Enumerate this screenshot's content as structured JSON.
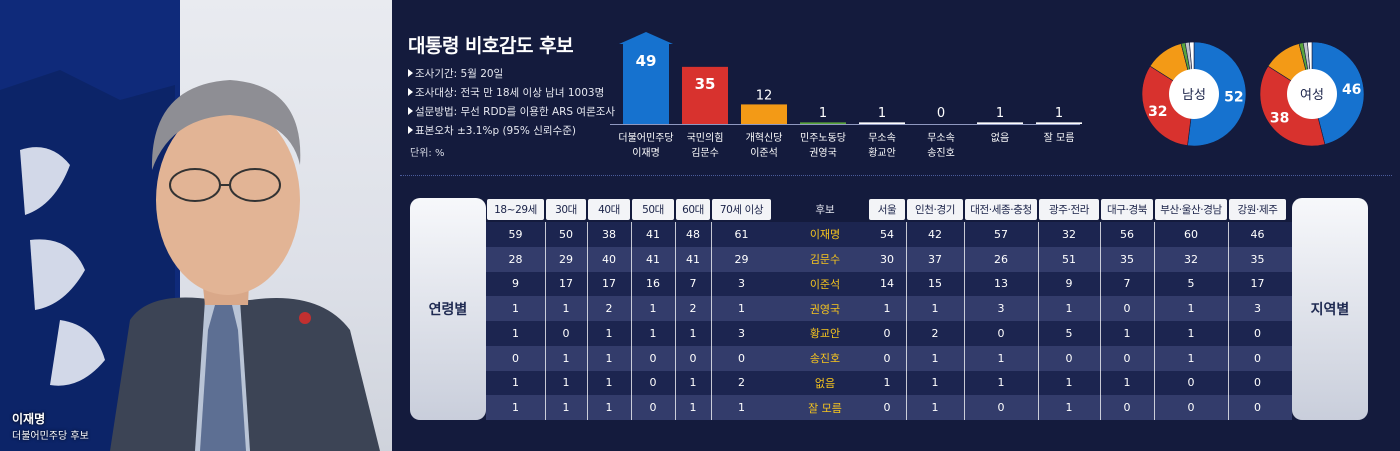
{
  "title": "대통령 비호감도 후보",
  "meta": [
    "조사기간: 5월 20일",
    "조사대상: 전국 만 18세 이상 남녀 1003명",
    "설문방법: 무선 RDD를 이용한 ARS 여론조사",
    "표본오차 ±3.1%p (95% 신뢰수준)"
  ],
  "unit": "단위: %",
  "photo_caption": {
    "name": "이재명",
    "role": "더불어민주당 후보"
  },
  "colors": {
    "blue": "#1672cf",
    "red": "#d8322e",
    "orange": "#f39a16",
    "green": "#5aa43c",
    "gray": "#c0c3cc",
    "white": "#ffffff"
  },
  "chart_data": [
    {
      "type": "bar",
      "categories": [
        [
          "더불어민주당",
          "이재명"
        ],
        [
          "국민의힘",
          "김문수"
        ],
        [
          "개혁신당",
          "이준석"
        ],
        [
          "민주노동당",
          "권영국"
        ],
        [
          "무소속",
          "황교안"
        ],
        [
          "무소속",
          "송진호"
        ],
        [
          "없음"
        ],
        [
          "잘 모름"
        ]
      ],
      "values": [
        49,
        35,
        12,
        1,
        1,
        0,
        1,
        1
      ],
      "colors": [
        "#1672cf",
        "#d8322e",
        "#f39a16",
        "#5aa43c",
        "#ffffff",
        "#ffffff",
        "#ffffff",
        "#ffffff"
      ],
      "ylim": [
        0,
        52
      ]
    },
    {
      "type": "pie",
      "center_label": "남성",
      "slices": [
        {
          "value": 52,
          "color": "#1672cf",
          "label": "52"
        },
        {
          "value": 32,
          "color": "#d8322e",
          "label": "32"
        },
        {
          "value": 12,
          "color": "#f39a16",
          "label": ""
        },
        {
          "value": 1.3,
          "color": "#5aa43c",
          "label": ""
        },
        {
          "value": 1.3,
          "color": "#c0c3cc",
          "label": ""
        },
        {
          "value": 1.4,
          "color": "#ffffff",
          "label": ""
        }
      ]
    },
    {
      "type": "pie",
      "center_label": "여성",
      "slices": [
        {
          "value": 46,
          "color": "#1672cf",
          "label": "46"
        },
        {
          "value": 38,
          "color": "#d8322e",
          "label": "38"
        },
        {
          "value": 12,
          "color": "#f39a16",
          "label": ""
        },
        {
          "value": 1.3,
          "color": "#5aa43c",
          "label": ""
        },
        {
          "value": 1.3,
          "color": "#c0c3cc",
          "label": ""
        },
        {
          "value": 1.4,
          "color": "#ffffff",
          "label": ""
        }
      ]
    },
    {
      "type": "table",
      "left_label": "연령별",
      "right_label": "지역별",
      "candidate_header": "후보",
      "age_columns": [
        "18~29세",
        "30대",
        "40대",
        "50대",
        "60대",
        "70세 이상"
      ],
      "region_columns": [
        "서울",
        "인천·경기",
        "대전·세종·충청",
        "광주·전라",
        "대구·경북",
        "부산·울산·경남",
        "강원·제주"
      ],
      "rows": [
        {
          "candidate": "이재명",
          "age": [
            59,
            50,
            38,
            41,
            48,
            61
          ],
          "region": [
            54,
            42,
            57,
            32,
            56,
            60,
            46
          ]
        },
        {
          "candidate": "김문수",
          "age": [
            28,
            29,
            40,
            41,
            41,
            29
          ],
          "region": [
            30,
            37,
            26,
            51,
            35,
            32,
            35
          ]
        },
        {
          "candidate": "이준석",
          "age": [
            9,
            17,
            17,
            16,
            7,
            3
          ],
          "region": [
            14,
            15,
            13,
            9,
            7,
            5,
            17
          ]
        },
        {
          "candidate": "권영국",
          "age": [
            1,
            1,
            2,
            1,
            2,
            1
          ],
          "region": [
            1,
            1,
            3,
            1,
            0,
            1,
            3
          ]
        },
        {
          "candidate": "황교안",
          "age": [
            1,
            0,
            1,
            1,
            1,
            3
          ],
          "region": [
            0,
            2,
            0,
            5,
            1,
            1,
            0
          ]
        },
        {
          "candidate": "송진호",
          "age": [
            0,
            1,
            1,
            0,
            0,
            0
          ],
          "region": [
            0,
            1,
            1,
            0,
            0,
            1,
            0
          ]
        },
        {
          "candidate": "없음",
          "age": [
            1,
            1,
            1,
            0,
            1,
            2
          ],
          "region": [
            1,
            1,
            1,
            1,
            1,
            0,
            0
          ]
        },
        {
          "candidate": "잘 모름",
          "age": [
            1,
            1,
            1,
            0,
            1,
            1
          ],
          "region": [
            0,
            1,
            0,
            1,
            0,
            0,
            0
          ]
        }
      ]
    }
  ]
}
